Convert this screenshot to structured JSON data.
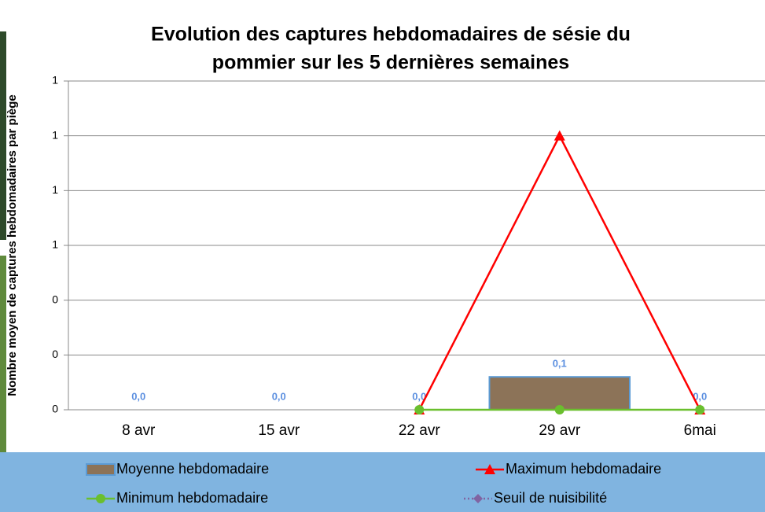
{
  "chart_data": {
    "type": "bar",
    "title": [
      "Evolution des captures hebdomadaires de sésie du",
      "pommier sur les 5 dernières semaines"
    ],
    "y_label": "Nombre moyen de captures hebdomadaires par piège",
    "categories": [
      "8 avr",
      "15 avr",
      "22 avr",
      "29 avr",
      "6mai"
    ],
    "ylim": [
      0,
      1.2
    ],
    "yticks": [
      0,
      {
        "value": 0.2,
        "label": "0"
      },
      {
        "value": 0.4,
        "label": "0"
      },
      {
        "value": 0.6,
        "label": "1"
      },
      {
        "value": 0.8,
        "label": "1"
      },
      1,
      {
        "value": 1.2,
        "label": "1"
      }
    ],
    "grid": true,
    "series": [
      {
        "name": "Moyenne hebdomadaire",
        "type": "bar",
        "color": "#8c7358",
        "edge": "#5b9bd5",
        "values": [
          0,
          0,
          0,
          0.12,
          0
        ],
        "value_labels": [
          "0,0",
          "0,0",
          "0,0",
          "0,1",
          "0,0"
        ]
      },
      {
        "name": "Maximum hebdomadaire",
        "type": "line",
        "marker": "triangle",
        "color": "#ff0000",
        "values": [
          null,
          null,
          0,
          1,
          0
        ]
      },
      {
        "name": "Minimum hebdomadaire",
        "type": "line",
        "marker": "circle",
        "color": "#6abf2e",
        "values": [
          null,
          null,
          0,
          0,
          0
        ]
      },
      {
        "name": "Seuil de nuisibilité",
        "type": "line",
        "marker": "diamond",
        "dashed": true,
        "color": "#8064a2",
        "values": [
          null,
          null,
          null,
          null,
          null
        ]
      }
    ]
  }
}
